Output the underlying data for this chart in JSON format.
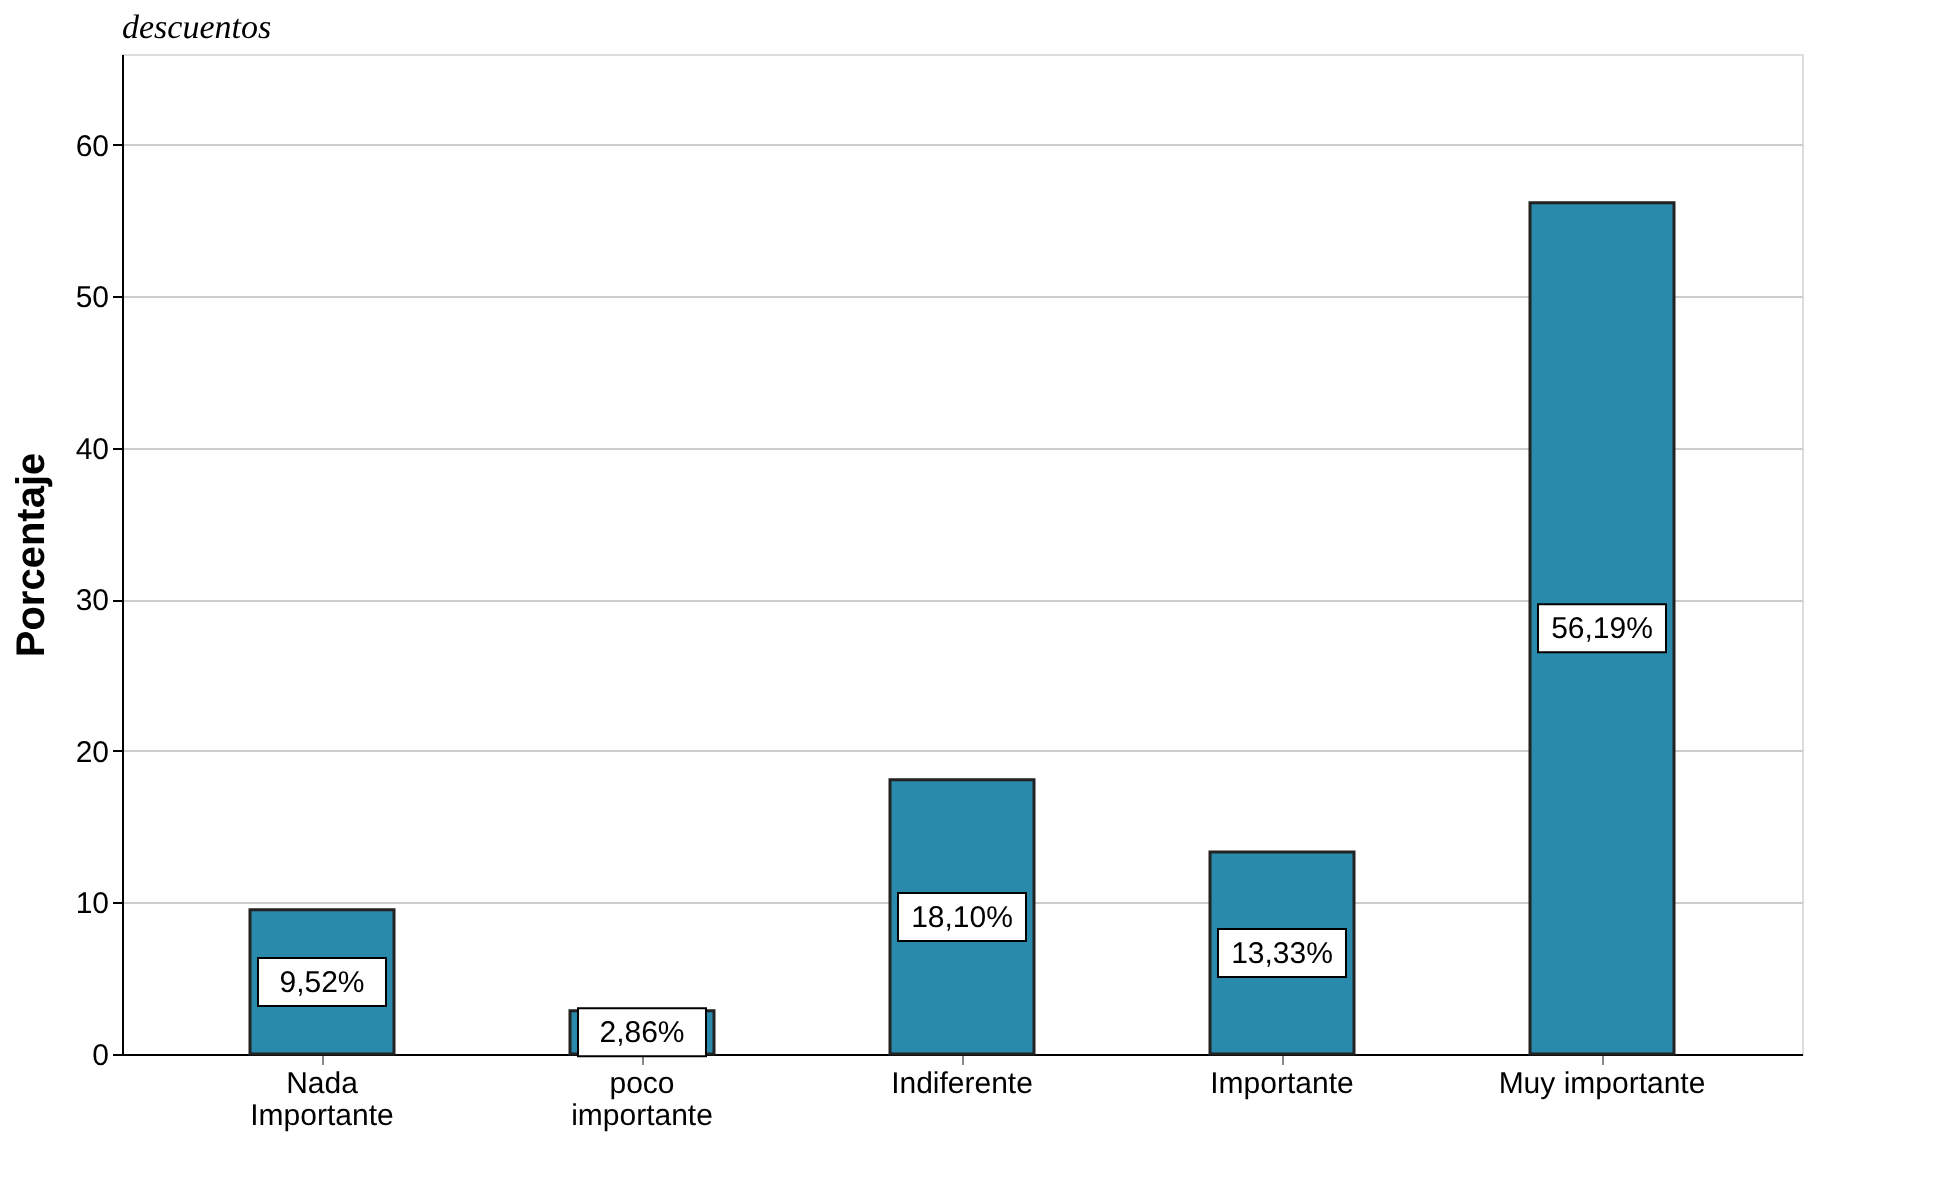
{
  "chart_data": {
    "type": "bar",
    "title": "descuentos",
    "ylabel": "Porcentaje",
    "categories": [
      "Nada\nImportante",
      "poco\nimportante",
      "Indiferente",
      "Importante",
      "Muy importante"
    ],
    "values": [
      9.52,
      2.86,
      18.1,
      13.33,
      56.19
    ],
    "value_labels": [
      "9,52%",
      "2,86%",
      "18,10%",
      "13,33%",
      "56,19%"
    ],
    "color": "#2a8aab",
    "ylim": [
      0,
      66
    ],
    "yticks": [
      0,
      10,
      20,
      30,
      40,
      50,
      60
    ],
    "grid": "y"
  }
}
